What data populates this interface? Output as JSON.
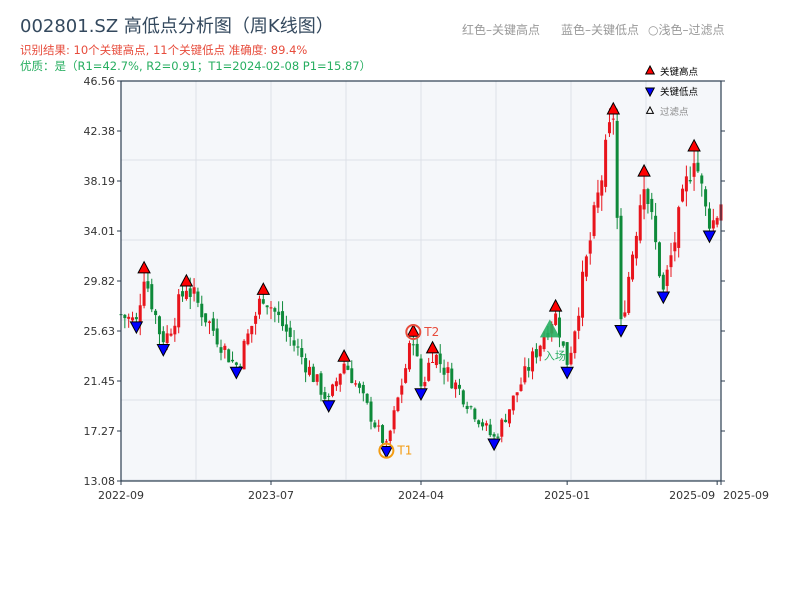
{
  "header": {
    "title": "002801.SZ 高低点分析图（周K线图）",
    "result_line": "识别结果: 10个关键高点, 11个关键低点  准确度: 89.4%",
    "quality_line": "优质：是（R1=42.7%, R2=0.91；T1=2024-02-08 P1=15.87）",
    "hint_red": "红色–关键高点",
    "hint_blue": "蓝色–关键低点",
    "hint_light": "○浅色–过滤点"
  },
  "legend": {
    "high": "关键高点",
    "low": "关键低点",
    "filtered": "过滤点"
  },
  "colors": {
    "up": "#e8141c",
    "down": "#0e8a3a",
    "high_marker": "#ff0000",
    "low_marker": "#0000ff",
    "t1": "#f39c12",
    "t2": "#e74c3c",
    "entry": "#27ae60",
    "plot_bg": "#f5f7fa",
    "axis": "#2c3e50"
  },
  "chart_data": {
    "type": "candlestick",
    "title": "002801.SZ 高低点分析图（周K线图）",
    "x_unit": "week index",
    "xlim": [
      0,
      156
    ],
    "ylim": [
      13.08,
      46.56
    ],
    "y_ticks": [
      "13.08",
      "17.27",
      "21.45",
      "25.63",
      "29.82",
      "34.01",
      "38.19",
      "42.38",
      "46.56"
    ],
    "x_ticks": [
      {
        "index": 0,
        "label": "2022-09"
      },
      {
        "index": 39,
        "label": "2023-07"
      },
      {
        "index": 78,
        "label": "2024-04"
      },
      {
        "index": 116,
        "label": "2025-01"
      },
      {
        "index": 155,
        "label": "2025-09"
      },
      {
        "index": 156,
        "label": "2025-09"
      }
    ],
    "price_path": [
      [
        0,
        27.0
      ],
      [
        4,
        26.3
      ],
      [
        6,
        30.6
      ],
      [
        11,
        24.4
      ],
      [
        17,
        29.5
      ],
      [
        30,
        22.5
      ],
      [
        37,
        28.8
      ],
      [
        54,
        19.7
      ],
      [
        58,
        23.2
      ],
      [
        69,
        15.87
      ],
      [
        76,
        25.3
      ],
      [
        78,
        20.7
      ],
      [
        81,
        23.9
      ],
      [
        97,
        16.5
      ],
      [
        113,
        27.4
      ],
      [
        116,
        22.5
      ],
      [
        128,
        43.9
      ],
      [
        130,
        26.0
      ],
      [
        136,
        38.7
      ],
      [
        141,
        28.8
      ],
      [
        149,
        40.8
      ],
      [
        153,
        33.9
      ],
      [
        156,
        36.5
      ]
    ],
    "key_highs": [
      {
        "index": 6,
        "price": 30.6
      },
      {
        "index": 17,
        "price": 29.5
      },
      {
        "index": 37,
        "price": 28.8
      },
      {
        "index": 58,
        "price": 23.2
      },
      {
        "index": 76,
        "price": 25.3
      },
      {
        "index": 81,
        "price": 23.9
      },
      {
        "index": 113,
        "price": 27.4
      },
      {
        "index": 128,
        "price": 43.9
      },
      {
        "index": 136,
        "price": 38.7
      },
      {
        "index": 149,
        "price": 40.8
      }
    ],
    "key_lows": [
      {
        "index": 4,
        "price": 26.3
      },
      {
        "index": 11,
        "price": 24.4
      },
      {
        "index": 30,
        "price": 22.5
      },
      {
        "index": 54,
        "price": 19.7
      },
      {
        "index": 69,
        "price": 15.87
      },
      {
        "index": 78,
        "price": 20.7
      },
      {
        "index": 97,
        "price": 16.5
      },
      {
        "index": 116,
        "price": 22.5
      },
      {
        "index": 130,
        "price": 26.0
      },
      {
        "index": 141,
        "price": 28.8
      },
      {
        "index": 153,
        "price": 33.9
      }
    ],
    "annotations": [
      {
        "label": "T1",
        "index": 69,
        "price": 15.87,
        "kind": "low"
      },
      {
        "label": "T2",
        "index": 76,
        "price": 25.3,
        "kind": "high"
      },
      {
        "label": "入场",
        "index": 111.5,
        "price": 25.6,
        "kind": "entry"
      }
    ],
    "grid": true,
    "legend_position": "top-right"
  }
}
